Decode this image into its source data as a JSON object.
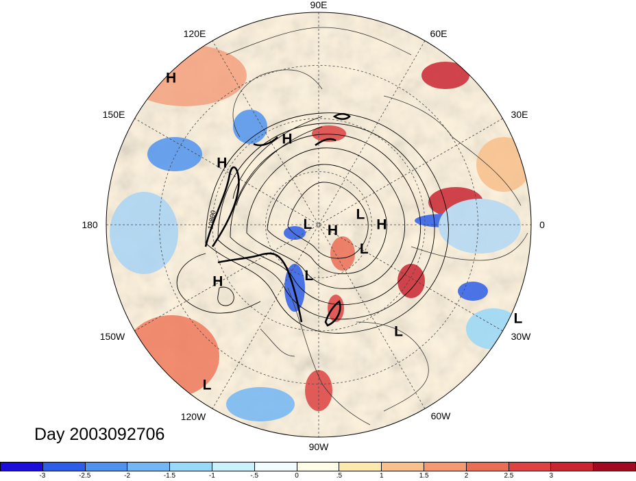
{
  "map": {
    "day_label": "Day 2003092706",
    "contour_value_label": "10800",
    "longitude_labels": [
      "90E",
      "60E",
      "30E",
      "0",
      "30W",
      "60W",
      "90W",
      "120W",
      "150W",
      "180",
      "150E",
      "120E"
    ],
    "pressure_centers": [
      {
        "type": "L",
        "lon": 115,
        "lat": -2
      },
      {
        "type": "H",
        "lon": 89,
        "lat": 57
      },
      {
        "type": "L",
        "lon": 75,
        "lat": 67
      },
      {
        "type": "L",
        "lon": 143,
        "lat": 26
      },
      {
        "type": "L",
        "lon": 117,
        "lat": 63
      },
      {
        "type": "H",
        "lon": 109,
        "lat": 82
      },
      {
        "type": "L",
        "lon": -83,
        "lat": 84
      },
      {
        "type": "L",
        "lon": -169,
        "lat": 63
      },
      {
        "type": "H",
        "lon": -20,
        "lat": 43
      },
      {
        "type": "H",
        "lon": -57,
        "lat": 33
      },
      {
        "type": "H",
        "lon": -119,
        "lat": 33
      },
      {
        "type": "L",
        "lon": -145,
        "lat": 5
      },
      {
        "type": "H",
        "lon": -45,
        "lat": 1
      }
    ]
  },
  "colorbar": {
    "colors": [
      "#1c0ed8",
      "#2d5ee8",
      "#4f93ef",
      "#72b7f4",
      "#98d8f8",
      "#c9f0fb",
      "#f3fcff",
      "#fffce7",
      "#fde8ae",
      "#f8c08b",
      "#f39a70",
      "#ea6d55",
      "#dd4343",
      "#c92632",
      "#a10a20"
    ],
    "tick_labels": [
      "-3",
      "-2.5",
      "-2",
      "-1.5",
      "-1",
      "-.5",
      "0",
      ".5",
      "1",
      "1.5",
      "2",
      "2.5",
      "3"
    ]
  }
}
